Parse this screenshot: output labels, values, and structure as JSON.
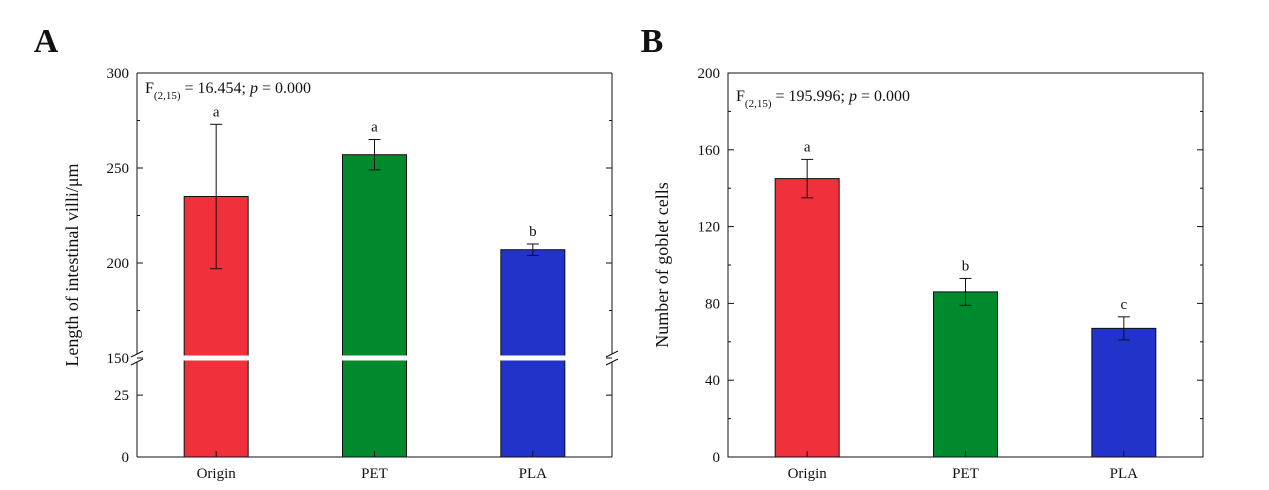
{
  "chart_data": [
    {
      "type": "bar",
      "panel_label": "A",
      "categories": [
        "Origin",
        "PET",
        "PLA"
      ],
      "values": [
        235,
        257,
        207
      ],
      "errors": [
        38,
        8,
        3
      ],
      "significance_letters": [
        "a",
        "a",
        "b"
      ],
      "colors": [
        "#f0303a",
        "#008a2e",
        "#2233cc"
      ],
      "xlabel": "",
      "ylabel": "Length of intestinal villi/μm",
      "statistic": {
        "prefix": "F",
        "subscript": "(2,15)",
        "value_text": " = 16.454; ",
        "p_label": "p",
        "p_text": " = 0.000"
      },
      "axis_break": {
        "lower_range": [
          0,
          40
        ],
        "upper_range": [
          150,
          300
        ]
      },
      "yticks_lower": [
        0,
        25
      ],
      "yticks_upper": [
        150,
        200,
        250,
        300
      ],
      "ytick_labels": [
        "0",
        "25",
        "150",
        "200",
        "250",
        "300"
      ],
      "grid": false
    },
    {
      "type": "bar",
      "panel_label": "B",
      "categories": [
        "Origin",
        "PET",
        "PLA"
      ],
      "values": [
        145,
        86,
        67
      ],
      "errors": [
        10,
        7,
        6
      ],
      "significance_letters": [
        "a",
        "b",
        "c"
      ],
      "colors": [
        "#f0303a",
        "#008a2e",
        "#2233cc"
      ],
      "xlabel": "",
      "ylabel": "Number of goblet cells",
      "statistic": {
        "prefix": "F",
        "subscript": "(2,15)",
        "value_text": " = 195.996; ",
        "p_label": "p",
        "p_text": " = 0.000"
      },
      "ylim": [
        0,
        200
      ],
      "yticks": [
        0,
        40,
        80,
        120,
        160,
        200
      ],
      "ytick_labels": [
        "0",
        "40",
        "80",
        "120",
        "160",
        "200"
      ],
      "grid": false
    }
  ]
}
